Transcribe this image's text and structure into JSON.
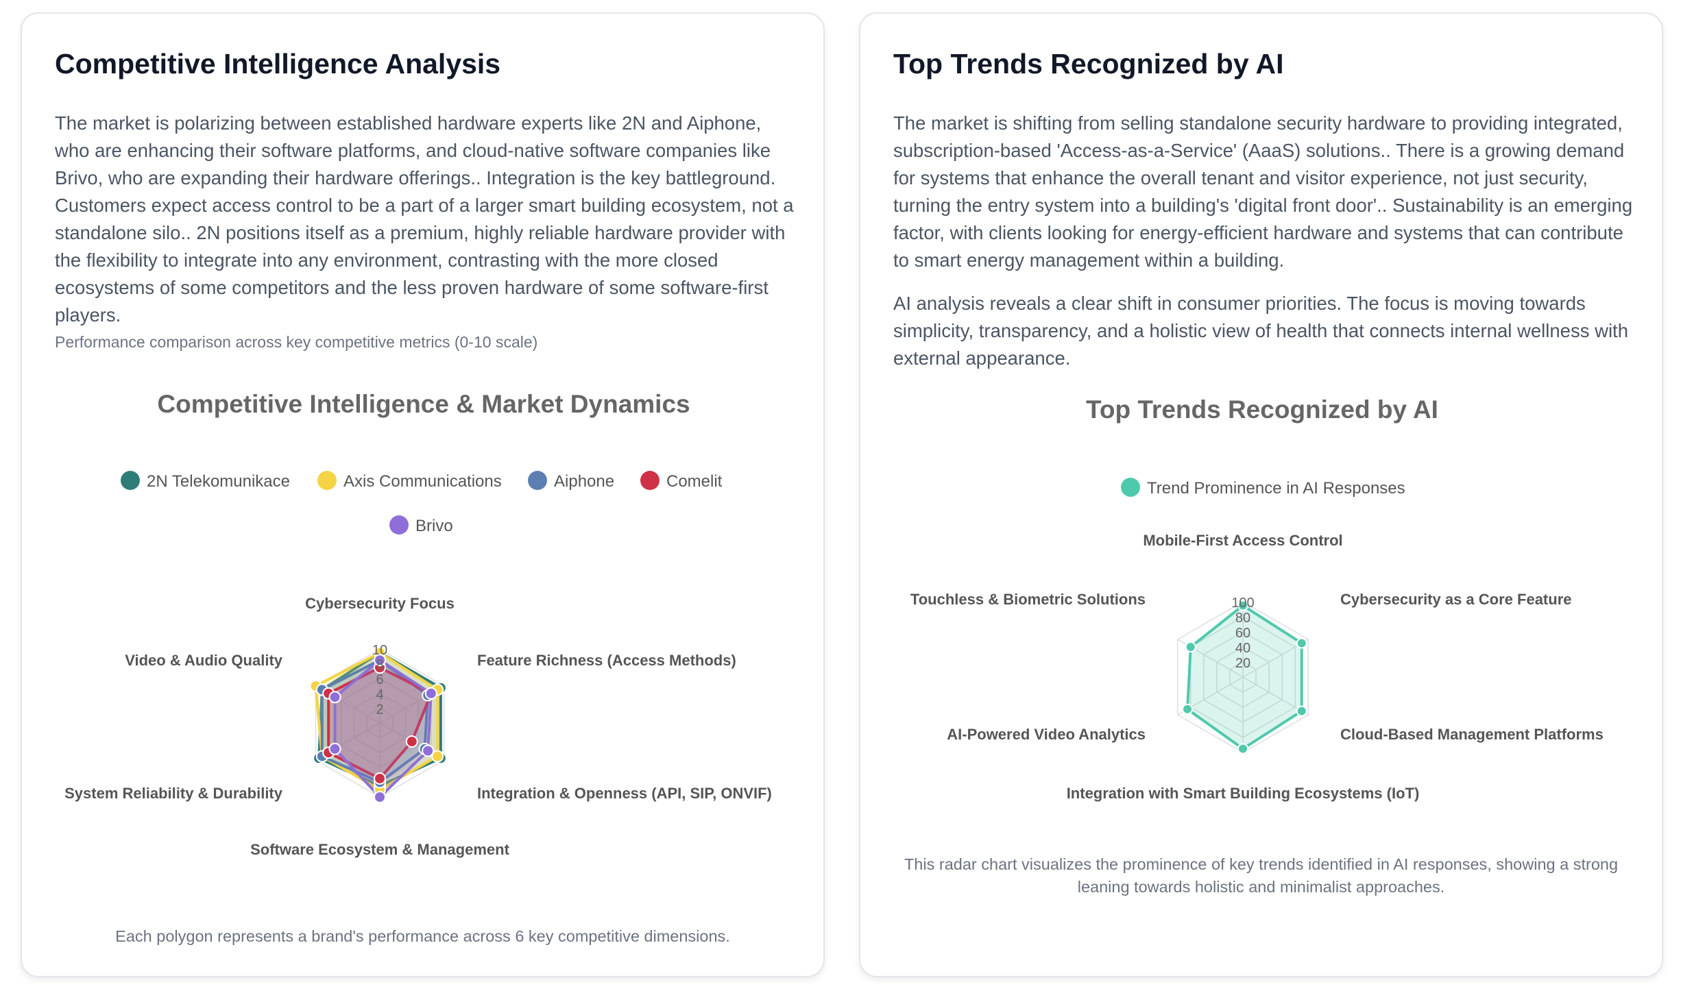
{
  "left_card": {
    "title": "Competitive Intelligence Analysis",
    "paragraph": "The market is polarizing between established hardware experts like 2N and Aiphone, who are enhancing their software platforms, and cloud-native software companies like Brivo, who are expanding their hardware offerings.. Integration is the key battleground. Customers expect access control to be a part of a larger smart building ecosystem, not a standalone silo.. 2N positions itself as a premium, highly reliable hardware provider with the flexibility to integrate into any environment, contrasting with the more closed ecosystems of some competitors and the less proven hardware of some software-first players.",
    "chart_caption": "Performance comparison across key competitive metrics (0-10 scale)",
    "footnote": "Each polygon represents a brand's performance across 6 key competitive dimensions."
  },
  "right_card": {
    "title": "Top Trends Recognized by AI",
    "paragraph_1": "The market is shifting from selling standalone security hardware to providing integrated, subscription-based 'Access-as-a-Service' (AaaS) solutions.. There is a growing demand for systems that enhance the overall tenant and visitor experience, not just security, turning the entry system into a building's 'digital front door'.. Sustainability is an emerging factor, with clients looking for energy-efficient hardware and systems that can contribute to smart energy management within a building.",
    "paragraph_2": "AI analysis reveals a clear shift in consumer priorities. The focus is moving towards simplicity, transparency, and a holistic view of health that connects internal wellness with external appearance.",
    "footnote": "This radar chart visualizes the prominence of key trends identified in AI responses, showing a strong leaning towards holistic and minimalist approaches."
  },
  "chart_data": [
    {
      "type": "radar",
      "title": "Competitive Intelligence & Market Dynamics",
      "axes": [
        "Cybersecurity Focus",
        "Feature Richness (Access Methods)",
        "Integration & Openness (API, SIP, ONVIF)",
        "Software Ecosystem & Management",
        "System Reliability & Durability",
        "Video & Audio Quality"
      ],
      "rlim": [
        0,
        10
      ],
      "ticks": [
        "2",
        "4",
        "6",
        "8",
        "10"
      ],
      "legend_position": "top",
      "series": [
        {
          "name": "2N Telekomunikace",
          "color": "#2e7d79",
          "values": [
            9.5,
            9.5,
            9.5,
            8.5,
            9.5,
            9
          ]
        },
        {
          "name": "Axis Communications",
          "color": "#f4d444",
          "values": [
            9.5,
            9,
            9,
            9,
            9,
            10
          ]
        },
        {
          "name": "Aiphone",
          "color": "#5b7fb0",
          "values": [
            8.5,
            7.5,
            7,
            8,
            9,
            9
          ]
        },
        {
          "name": "Comelit",
          "color": "#cf3147",
          "values": [
            7.5,
            8,
            5,
            7.5,
            8,
            8
          ]
        },
        {
          "name": "Brivo",
          "color": "#8e6fd8",
          "values": [
            8.5,
            8,
            7.5,
            10,
            7,
            7
          ]
        }
      ]
    },
    {
      "type": "radar",
      "title": "Top Trends Recognized by AI",
      "axes": [
        "Mobile-First Access Control",
        "Cybersecurity as a Core Feature",
        "Cloud-Based Management Platforms",
        "Integration with Smart Building Ecosystems (IoT)",
        "AI-Powered Video Analytics",
        "Touchless & Biometric Solutions"
      ],
      "rlim": [
        0,
        100
      ],
      "ticks": [
        "20",
        "40",
        "60",
        "80",
        "100"
      ],
      "legend_position": "top",
      "series": [
        {
          "name": "Trend Prominence in AI Responses",
          "color": "#4fc9ac",
          "values": [
            95,
            90,
            90,
            95,
            85,
            80
          ]
        }
      ]
    }
  ]
}
